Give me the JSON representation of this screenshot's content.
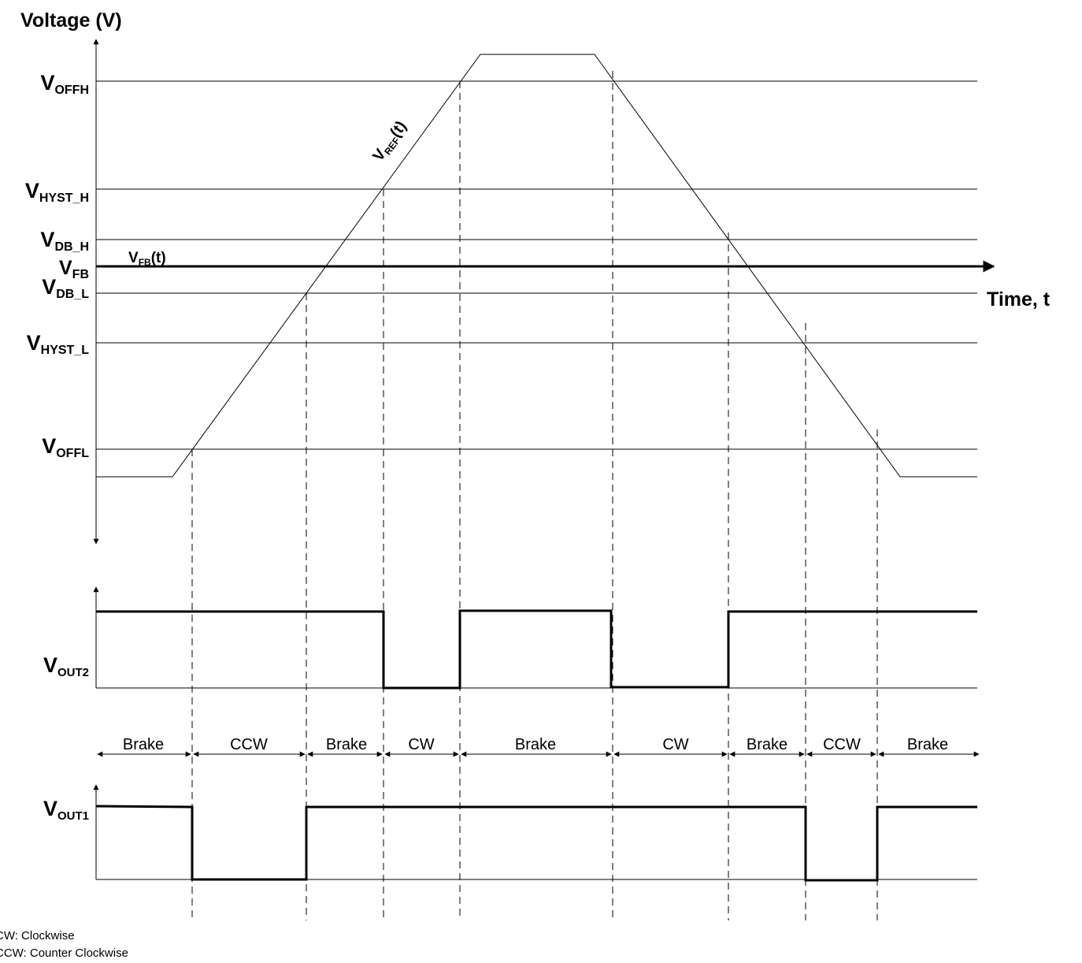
{
  "axes": {
    "y_label": "Voltage (V)",
    "x_label": "Time, t"
  },
  "levels": {
    "offh": {
      "base": "V",
      "sub": "OFFH"
    },
    "hyst_h": {
      "base": "V",
      "sub": "HYST_H"
    },
    "db_h": {
      "base": "V",
      "sub": "DB_H"
    },
    "fb": {
      "base": "V",
      "sub": "FB"
    },
    "db_l": {
      "base": "V",
      "sub": "DB_L"
    },
    "hyst_l": {
      "base": "V",
      "sub": "HYST_L"
    },
    "offl": {
      "base": "V",
      "sub": "OFFL"
    }
  },
  "signals": {
    "vref": {
      "base": "V",
      "sub": "REF",
      "suffix": "(t)"
    },
    "vfb": {
      "base": "V",
      "sub": "FB",
      "suffix": "(t)"
    },
    "vout2": {
      "base": "V",
      "sub": "OUT2"
    },
    "vout1": {
      "base": "V",
      "sub": "OUT1"
    }
  },
  "segments": [
    "Brake",
    "CCW",
    "Brake",
    "CW",
    "Brake",
    "CW",
    "Brake",
    "CCW",
    "Brake"
  ],
  "legend": {
    "cw": "CW: Clockwise",
    "ccw": "CCW: Counter Clockwise"
  }
}
